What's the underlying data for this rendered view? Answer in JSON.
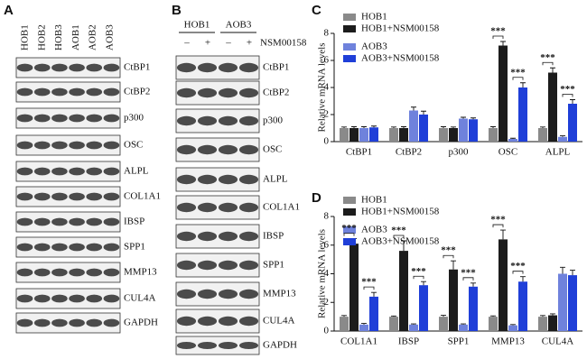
{
  "blots": [
    {
      "panel": "A",
      "columns": [
        "HOB1",
        "HOB2",
        "HOB3",
        "AOB1",
        "AOB2",
        "AOB3"
      ],
      "rows": [
        "CtBP1",
        "CtBP2",
        "p300",
        "OSC",
        "ALPL",
        "COL1A1",
        "IBSP",
        "SPP1",
        "MMP13",
        "CUL4A",
        "GAPDH"
      ]
    },
    {
      "panel": "B",
      "groups": [
        "HOB1",
        "AOB3"
      ],
      "treatment_signs": [
        "–",
        "+",
        "–",
        "+"
      ],
      "treatment": "NSM00158",
      "rows": [
        "CtBP1",
        "CtBP2",
        "p300",
        "OSC",
        "ALPL",
        "COL1A1",
        "IBSP",
        "SPP1",
        "MMP13",
        "CUL4A",
        "GAPDH"
      ]
    }
  ],
  "chart_data": [
    {
      "type": "bar",
      "panel": "C",
      "y_label": "Relative mRNA levels",
      "categories": [
        "CtBP1",
        "CtBP2",
        "p300",
        "OSC",
        "ALPL"
      ],
      "series": [
        {
          "name": "HOB1",
          "color": "#8a8a8a",
          "values": [
            1,
            1,
            1,
            1,
            1
          ],
          "errors": [
            0.08,
            0.08,
            0.1,
            0.1,
            0.08
          ]
        },
        {
          "name": "HOB1+NSM00158",
          "color": "#1c1c1c",
          "values": [
            1,
            1,
            1,
            7.1,
            5.1
          ],
          "errors": [
            0.1,
            0.1,
            0.08,
            0.3,
            0.35
          ]
        },
        {
          "name": "AOB3",
          "color": "#6f82dc",
          "values": [
            1,
            2.3,
            1.7,
            0.2,
            0.35
          ],
          "errors": [
            0.1,
            0.25,
            0.1,
            0.05,
            0.08
          ]
        },
        {
          "name": "AOB3+NSM00158",
          "color": "#1f3fd8",
          "values": [
            1.05,
            2,
            1.65,
            4,
            2.8
          ],
          "errors": [
            0.1,
            0.25,
            0.1,
            0.35,
            0.3
          ]
        }
      ],
      "ylim": [
        0,
        8
      ],
      "yticks": [
        0,
        2,
        4,
        6,
        8
      ],
      "annotations": [
        {
          "label": "***",
          "category": "OSC",
          "series": [
            "HOB1",
            "HOB1+NSM00158"
          ]
        },
        {
          "label": "***",
          "category": "OSC",
          "series": [
            "AOB3",
            "AOB3+NSM00158"
          ]
        },
        {
          "label": "***",
          "category": "ALPL",
          "series": [
            "HOB1",
            "HOB1+NSM00158"
          ]
        },
        {
          "label": "***",
          "category": "ALPL",
          "series": [
            "AOB3",
            "AOB3+NSM00158"
          ]
        }
      ]
    },
    {
      "type": "bar",
      "panel": "D",
      "y_label": "Relative mRNA levels",
      "categories": [
        "COL1A1",
        "IBSP",
        "SPP1",
        "MMP13",
        "CUL4A"
      ],
      "series": [
        {
          "name": "HOB1",
          "color": "#8a8a8a",
          "values": [
            1,
            1,
            1,
            1,
            1
          ],
          "errors": [
            0.08,
            0.05,
            0.1,
            0.06,
            0.08
          ]
        },
        {
          "name": "HOB1+NSM00158",
          "color": "#1c1c1c",
          "values": [
            6.1,
            5.6,
            4.3,
            6.4,
            1.1
          ],
          "errors": [
            0.35,
            0.7,
            0.6,
            0.65,
            0.1
          ]
        },
        {
          "name": "AOB3",
          "color": "#6f82dc",
          "values": [
            0.45,
            0.45,
            0.45,
            0.4,
            4
          ],
          "errors": [
            0.08,
            0.05,
            0.05,
            0.05,
            0.45
          ]
        },
        {
          "name": "AOB3+NSM00158",
          "color": "#1f3fd8",
          "values": [
            2.4,
            3.2,
            3.1,
            3.45,
            3.9
          ],
          "errors": [
            0.3,
            0.25,
            0.25,
            0.35,
            0.35
          ]
        }
      ],
      "ylim": [
        0,
        8
      ],
      "yticks": [
        0,
        2,
        4,
        6,
        8
      ],
      "annotations": [
        {
          "label": "***",
          "category": "COL1A1",
          "series": [
            "HOB1",
            "HOB1+NSM00158"
          ]
        },
        {
          "label": "***",
          "category": "COL1A1",
          "series": [
            "AOB3",
            "AOB3+NSM00158"
          ]
        },
        {
          "label": "***",
          "category": "IBSP",
          "series": [
            "HOB1",
            "HOB1+NSM00158"
          ]
        },
        {
          "label": "***",
          "category": "IBSP",
          "series": [
            "AOB3",
            "AOB3+NSM00158"
          ]
        },
        {
          "label": "***",
          "category": "SPP1",
          "series": [
            "HOB1",
            "HOB1+NSM00158"
          ]
        },
        {
          "label": "***",
          "category": "SPP1",
          "series": [
            "AOB3",
            "AOB3+NSM00158"
          ]
        },
        {
          "label": "***",
          "category": "MMP13",
          "series": [
            "HOB1",
            "HOB1+NSM00158"
          ]
        },
        {
          "label": "***",
          "category": "MMP13",
          "series": [
            "AOB3",
            "AOB3+NSM00158"
          ]
        }
      ]
    }
  ]
}
